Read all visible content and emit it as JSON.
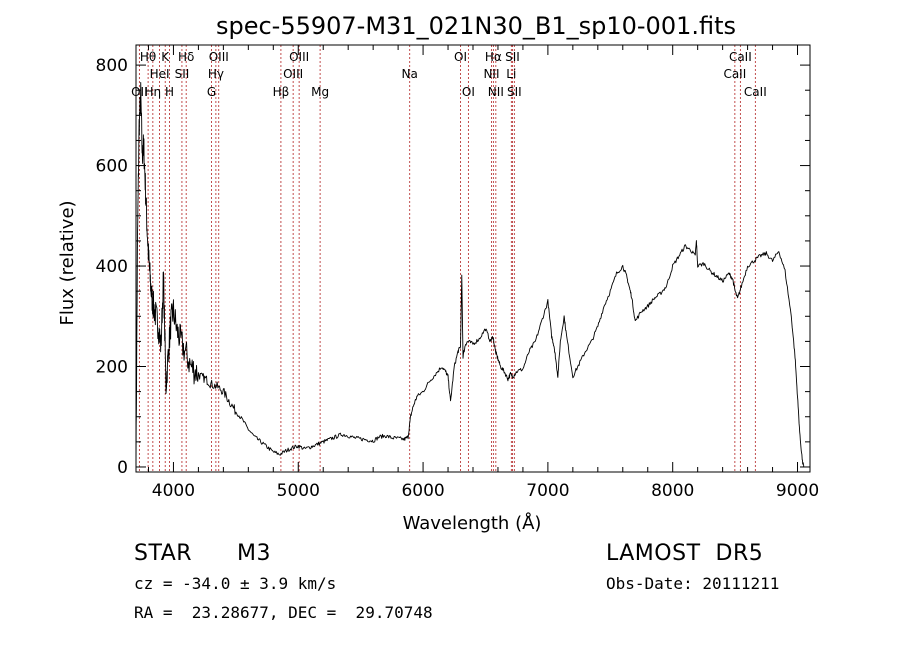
{
  "chart_data": {
    "type": "line",
    "title": "spec-55907-M31_021N30_B1_sp10-001.fits",
    "xlabel": "Wavelength (Å)",
    "ylabel": "Flux (relative)",
    "xlim": [
      3700,
      9100
    ],
    "ylim": [
      -10,
      840
    ],
    "xticks": [
      4000,
      5000,
      6000,
      7000,
      8000,
      9000
    ],
    "yticks": [
      0,
      200,
      400,
      600,
      800
    ],
    "line_color": "#000000",
    "marker_line_color": "#b22222",
    "series": [
      {
        "x": [
          3700,
          3712,
          3725,
          3738,
          3750,
          3762,
          3775,
          3788,
          3800,
          3812,
          3825,
          3840,
          3860,
          3880,
          3900,
          3920,
          3940,
          3960,
          3980,
          4000,
          4030,
          4060,
          4100,
          4140,
          4180,
          4220,
          4260,
          4300,
          4350,
          4400,
          4450,
          4500,
          4550,
          4600,
          4650,
          4700,
          4750,
          4800,
          4850,
          4900,
          4950,
          5000,
          5050,
          5100,
          5150,
          5200,
          5250,
          5300,
          5350,
          5400,
          5450,
          5500,
          5550,
          5600,
          5650,
          5700,
          5750,
          5800,
          5850,
          5880,
          5900,
          5920,
          5950,
          6000,
          6050,
          6100,
          6150,
          6180,
          6200,
          6220,
          6250,
          6280,
          6300,
          6310,
          6320,
          6340,
          6360,
          6400,
          6450,
          6500,
          6540,
          6560,
          6580,
          6600,
          6620,
          6650,
          6680,
          6700,
          6720,
          6750,
          6800,
          6850,
          6900,
          6950,
          7000,
          7030,
          7050,
          7060,
          7080,
          7100,
          7130,
          7150,
          7200,
          7250,
          7300,
          7350,
          7400,
          7450,
          7500,
          7550,
          7600,
          7630,
          7650,
          7670,
          7700,
          7750,
          7800,
          7850,
          7900,
          7950,
          8000,
          8050,
          8100,
          8150,
          8180,
          8190,
          8200,
          8250,
          8300,
          8350,
          8400,
          8450,
          8480,
          8500,
          8520,
          8550,
          8600,
          8650,
          8700,
          8750,
          8800,
          8850,
          8900,
          8950,
          8980,
          9000,
          9020,
          9040,
          9050
        ],
        "y": [
          5,
          450,
          680,
          740,
          620,
          640,
          560,
          480,
          420,
          380,
          340,
          320,
          300,
          280,
          240,
          380,
          160,
          230,
          290,
          310,
          270,
          250,
          225,
          200,
          190,
          180,
          175,
          165,
          160,
          150,
          130,
          110,
          95,
          75,
          60,
          50,
          40,
          30,
          25,
          32,
          38,
          42,
          36,
          40,
          45,
          50,
          55,
          60,
          65,
          62,
          58,
          56,
          54,
          52,
          60,
          62,
          58,
          57,
          55,
          60,
          100,
          120,
          140,
          150,
          170,
          185,
          200,
          190,
          180,
          130,
          200,
          230,
          240,
          380,
          220,
          245,
          250,
          245,
          255,
          275,
          250,
          260,
          230,
          215,
          200,
          190,
          175,
          185,
          180,
          190,
          195,
          230,
          250,
          290,
          330,
          260,
          240,
          220,
          180,
          250,
          300,
          260,
          180,
          205,
          230,
          250,
          280,
          320,
          350,
          385,
          400,
          380,
          360,
          340,
          290,
          310,
          320,
          335,
          345,
          360,
          400,
          420,
          440,
          430,
          420,
          450,
          400,
          405,
          390,
          380,
          370,
          385,
          375,
          350,
          335,
          360,
          400,
          410,
          420,
          425,
          410,
          430,
          390,
          300,
          220,
          140,
          60,
          10,
          0
        ]
      }
    ],
    "line_markers": [
      {
        "wl": 3727,
        "label": "OII",
        "row": 3
      },
      {
        "wl": 3797,
        "label": "Hθ",
        "row": 1
      },
      {
        "wl": 3835,
        "label": "Hη",
        "row": 3
      },
      {
        "wl": 3889,
        "label": "HeI",
        "row": 2
      },
      {
        "wl": 3934,
        "label": "K",
        "row": 1
      },
      {
        "wl": 3969,
        "label": "H",
        "row": 3
      },
      {
        "wl": 4102,
        "label": "Hδ",
        "row": 1
      },
      {
        "wl": 4068,
        "label": "SII",
        "row": 2
      },
      {
        "wl": 4340,
        "label": "Hγ",
        "row": 2
      },
      {
        "wl": 4305,
        "label": "G",
        "row": 3
      },
      {
        "wl": 4363,
        "label": "OIII",
        "row": 1
      },
      {
        "wl": 4861,
        "label": "Hβ",
        "row": 3
      },
      {
        "wl": 4959,
        "label": "OIII",
        "row": 2
      },
      {
        "wl": 5007,
        "label": "OIII",
        "row": 1
      },
      {
        "wl": 5175,
        "label": "Mg",
        "row": 3
      },
      {
        "wl": 5893,
        "label": "Na",
        "row": 2
      },
      {
        "wl": 6300,
        "label": "OI",
        "row": 1
      },
      {
        "wl": 6363,
        "label": "OI",
        "row": 3
      },
      {
        "wl": 6548,
        "label": "NII",
        "row": 2
      },
      {
        "wl": 6563,
        "label": "Hα",
        "row": 1
      },
      {
        "wl": 6583,
        "label": "NII",
        "row": 3
      },
      {
        "wl": 6707,
        "label": "Li",
        "row": 2
      },
      {
        "wl": 6716,
        "label": "SII",
        "row": 1
      },
      {
        "wl": 6731,
        "label": "SII",
        "row": 3
      },
      {
        "wl": 8498,
        "label": "CaII",
        "row": 2
      },
      {
        "wl": 8542,
        "label": "CaII",
        "row": 1
      },
      {
        "wl": 8662,
        "label": "CaII",
        "row": 3
      }
    ]
  },
  "info": {
    "object_class": "STAR",
    "subclass": "M3",
    "survey": "LAMOST  DR5",
    "cz": "cz = -34.0 ± 3.9 km/s",
    "obs_date": "Obs-Date: 20111211",
    "coords": "RA =  23.28677, DEC =  29.70748"
  }
}
